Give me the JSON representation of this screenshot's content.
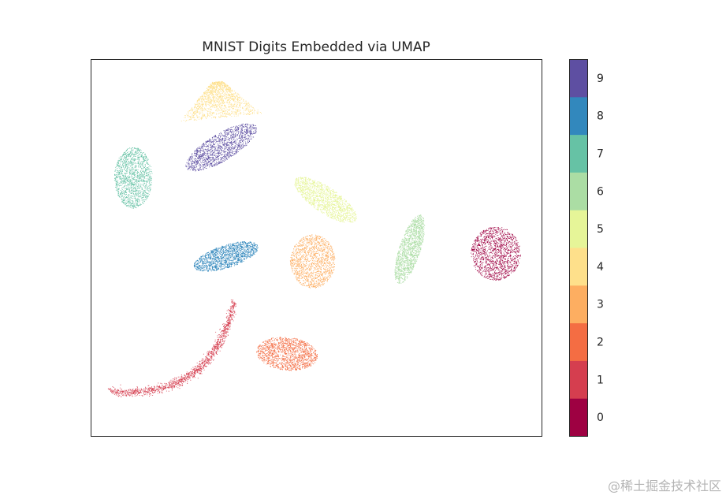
{
  "chart_data": {
    "type": "scatter",
    "title": "MNIST Digits Embedded via UMAP",
    "xlabel": "",
    "ylabel": "",
    "ticks_visible": false,
    "grid": false,
    "colorbar": {
      "labels": [
        "0",
        "1",
        "2",
        "3",
        "4",
        "5",
        "6",
        "7",
        "8",
        "9"
      ],
      "colors": [
        "#9e0142",
        "#d53e4f",
        "#f46d43",
        "#fdae61",
        "#fee08b",
        "#e6f598",
        "#abdda4",
        "#66c2a5",
        "#3288bd",
        "#5e4fa2"
      ]
    },
    "xlim": [
      0,
      1
    ],
    "ylim": [
      0,
      1
    ],
    "clusters": [
      {
        "digit": "0",
        "x": 0.898,
        "y": 0.485,
        "rx": 0.055,
        "ry": 0.071,
        "shape": "blob"
      },
      {
        "digit": "1",
        "x": 0.209,
        "y": 0.191,
        "rx": 0.17,
        "ry": 0.018,
        "angle": 36,
        "shape": "arc",
        "bend": 0.09
      },
      {
        "digit": "2",
        "x": 0.435,
        "y": 0.219,
        "rx": 0.068,
        "ry": 0.044,
        "angle": -6,
        "shape": "blob"
      },
      {
        "digit": "3",
        "x": 0.492,
        "y": 0.464,
        "rx": 0.05,
        "ry": 0.071,
        "shape": "blob"
      },
      {
        "digit": "4",
        "x": 0.284,
        "y": 0.893,
        "rx": 0.08,
        "ry": 0.048,
        "angle": 6,
        "shape": "tri"
      },
      {
        "digit": "5",
        "x": 0.52,
        "y": 0.627,
        "rx": 0.081,
        "ry": 0.034,
        "angle": -34,
        "shape": "blob"
      },
      {
        "digit": "6",
        "x": 0.707,
        "y": 0.496,
        "rx": 0.08,
        "ry": 0.028,
        "angle": 72,
        "shape": "blob"
      },
      {
        "digit": "7",
        "x": 0.094,
        "y": 0.686,
        "rx": 0.042,
        "ry": 0.081,
        "angle": 0,
        "shape": "blob"
      },
      {
        "digit": "8",
        "x": 0.3,
        "y": 0.477,
        "rx": 0.075,
        "ry": 0.03,
        "angle": 18,
        "shape": "blob"
      },
      {
        "digit": "9",
        "x": 0.289,
        "y": 0.767,
        "rx": 0.09,
        "ry": 0.036,
        "angle": 31,
        "shape": "blob"
      }
    ]
  },
  "watermark": "@稀土掘金技术社区"
}
